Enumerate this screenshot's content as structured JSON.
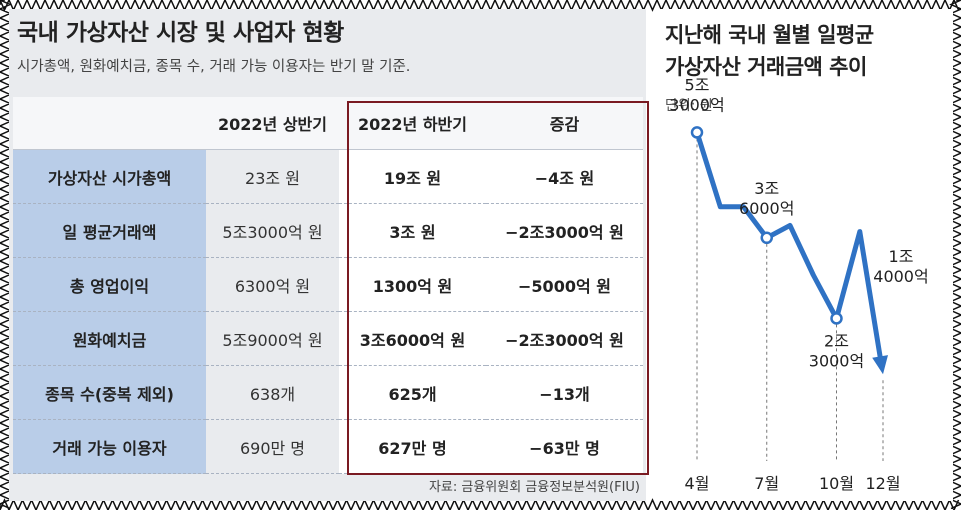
{
  "table": {
    "title": "국내 가상자산 시장 및 사업자 현황",
    "subtitle": "시가총액, 원화예치금, 종목 수, 거래 가능 이용자는 반기 말 기준.",
    "headers": [
      "",
      "2022년 상반기",
      "2022년 하반기",
      "증감"
    ],
    "rows": [
      [
        "가상자산 시가총액",
        "23조 원",
        "19조 원",
        "−4조 원"
      ],
      [
        "일 평균거래액",
        "5조3000억 원",
        "3조 원",
        "−2조3000억 원"
      ],
      [
        "총 영업이익",
        "6300억 원",
        "1300억 원",
        "−5000억 원"
      ],
      [
        "원화예치금",
        "5조9000억 원",
        "3조6000억 원",
        "−2조3000억 원"
      ],
      [
        "종목 수(중복 제외)",
        "638개",
        "625개",
        "−13개"
      ],
      [
        "거래 가능 이용자",
        "690만 명",
        "627만 명",
        "−63만 명"
      ]
    ],
    "source": "자료: 금융위원회 금융정보분석원(FIU)",
    "highlight_color": "#7a1a22",
    "header_row_color": "#b9cde8"
  },
  "chart_data": {
    "type": "line",
    "title": "지난해 국내 월별 일평균\n가상자산 거래금액 추이",
    "unit": "단위: 원",
    "ylabel": "",
    "x": [
      4,
      5,
      6,
      7,
      8,
      9,
      10,
      11,
      12
    ],
    "y": [
      5.3,
      4.1,
      4.1,
      3.6,
      3.8,
      3.0,
      2.3,
      3.7,
      1.4
    ],
    "value_unit": "조 원",
    "ylim": [
      0,
      6
    ],
    "xticks": [
      {
        "x": 4,
        "label": "4월"
      },
      {
        "x": 7,
        "label": "7월"
      },
      {
        "x": 10,
        "label": "10월"
      },
      {
        "x": 12,
        "label": "12월"
      }
    ],
    "markers": [
      4,
      7,
      10
    ],
    "end_arrow": true,
    "annotations": [
      {
        "x": 4,
        "line1": "5조",
        "line2": "3000억"
      },
      {
        "x": 7,
        "line1": "3조",
        "line2": "6000억"
      },
      {
        "x": 10,
        "line1": "2조",
        "line2": "3000억"
      },
      {
        "x": 12,
        "line1": "1조",
        "line2": "4000억"
      }
    ],
    "grid": false,
    "line_color": "#2f72c4"
  }
}
